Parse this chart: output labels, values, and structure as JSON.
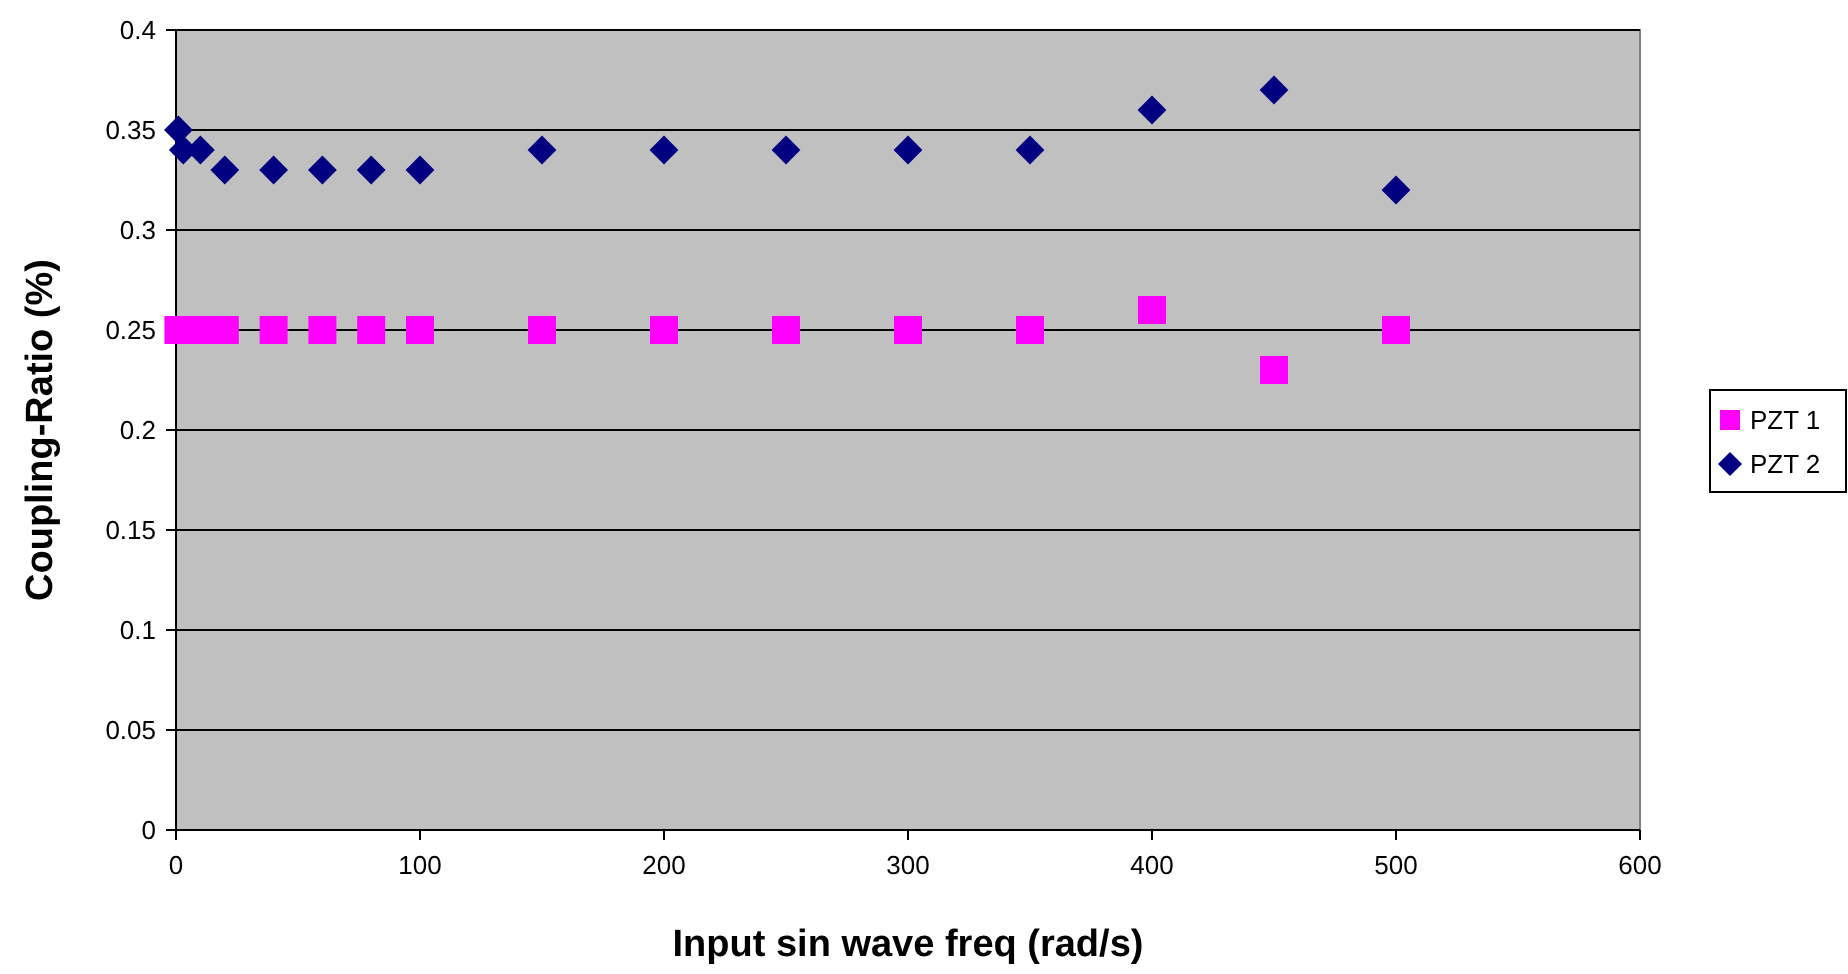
{
  "chart_data": {
    "type": "scatter",
    "xlabel": "Input sin wave freq (rad/s)",
    "ylabel": "Coupling-Ratio (%)",
    "x": [
      1,
      3,
      10,
      20,
      40,
      60,
      80,
      100,
      150,
      200,
      250,
      300,
      350,
      400,
      450,
      500
    ],
    "series": [
      {
        "name": "PZT 1",
        "color": "#ff00ff",
        "marker": "square",
        "x": [
          1,
          10,
          20,
          40,
          60,
          80,
          100,
          150,
          200,
          250,
          300,
          350,
          400,
          450,
          500
        ],
        "values": [
          0.25,
          0.25,
          0.25,
          0.25,
          0.25,
          0.25,
          0.25,
          0.25,
          0.25,
          0.25,
          0.25,
          0.25,
          0.26,
          0.23,
          0.25
        ]
      },
      {
        "name": "PZT 2",
        "color": "#000080",
        "marker": "diamond",
        "values": [
          0.35,
          0.34,
          0.34,
          0.33,
          0.33,
          0.33,
          0.33,
          0.33,
          0.34,
          0.34,
          0.34,
          0.34,
          0.34,
          0.36,
          0.37,
          0.32
        ]
      }
    ],
    "xlim": [
      0,
      600
    ],
    "xticks": [
      0,
      100,
      200,
      300,
      400,
      500,
      600
    ],
    "ylim": [
      0,
      0.4
    ],
    "yticks": [
      0,
      0.05,
      0.1,
      0.15,
      0.2,
      0.25,
      0.3,
      0.35,
      0.4
    ],
    "grid": "y",
    "legend": "right"
  }
}
